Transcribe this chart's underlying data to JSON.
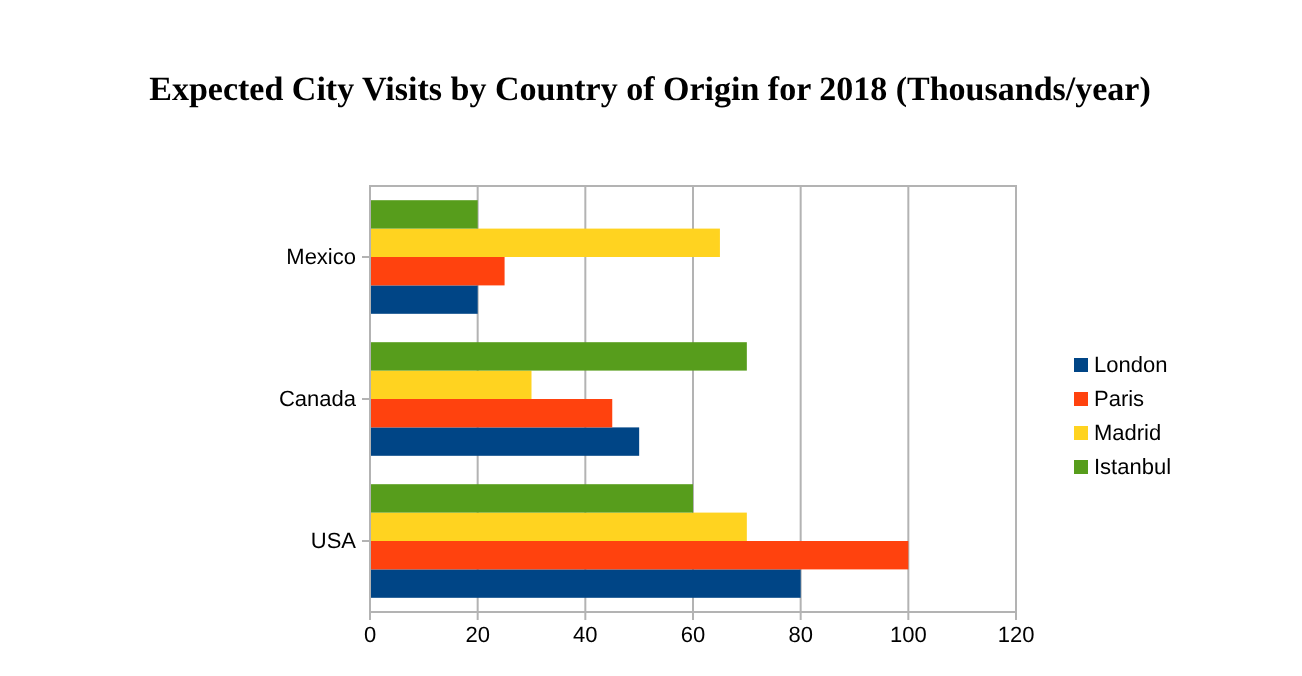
{
  "chart_data": {
    "type": "bar",
    "orientation": "horizontal",
    "title": "Expected City Visits by Country of Origin for 2018 (Thousands/year)",
    "categories": [
      "Mexico",
      "Canada",
      "USA"
    ],
    "series": [
      {
        "name": "London",
        "color": "#004586",
        "values": [
          20,
          50,
          80
        ]
      },
      {
        "name": "Paris",
        "color": "#ff420e",
        "values": [
          25,
          45,
          100
        ]
      },
      {
        "name": "Madrid",
        "color": "#ffd320",
        "values": [
          65,
          30,
          70
        ]
      },
      {
        "name": "Istanbul",
        "color": "#579d1c",
        "values": [
          20,
          70,
          60
        ]
      }
    ],
    "xlim": [
      0,
      120
    ],
    "xticks": [
      0,
      20,
      40,
      60,
      80,
      100,
      120
    ],
    "grid": "x",
    "legend": "right"
  }
}
